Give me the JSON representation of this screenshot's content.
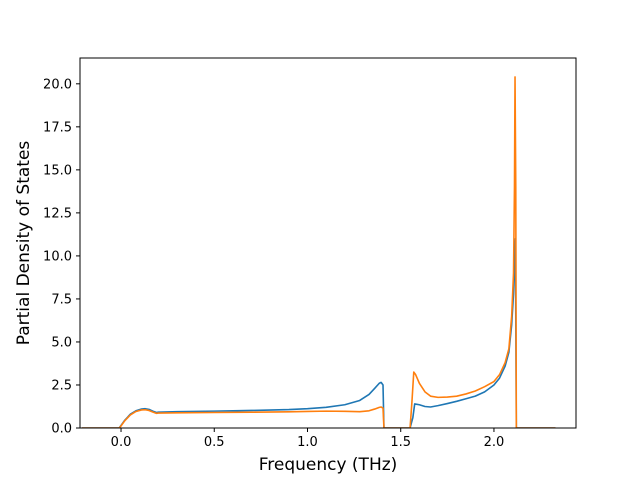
{
  "chart_data": {
    "type": "line",
    "title": "",
    "xlabel": "Frequency (THz)",
    "ylabel": "Partial Density of States",
    "xlim": [
      -0.22,
      2.44
    ],
    "ylim": [
      0.0,
      21.5
    ],
    "xticks": [
      {
        "value": 0.0,
        "label": "0.0"
      },
      {
        "value": 0.5,
        "label": "0.5"
      },
      {
        "value": 1.0,
        "label": "1.0"
      },
      {
        "value": 1.5,
        "label": "1.5"
      },
      {
        "value": 2.0,
        "label": "2.0"
      }
    ],
    "yticks": [
      {
        "value": 0.0,
        "label": "0.0"
      },
      {
        "value": 2.5,
        "label": "2.5"
      },
      {
        "value": 5.0,
        "label": "5.0"
      },
      {
        "value": 7.5,
        "label": "7.5"
      },
      {
        "value": 10.0,
        "label": "10.0"
      },
      {
        "value": 12.5,
        "label": "12.5"
      },
      {
        "value": 15.0,
        "label": "15.0"
      },
      {
        "value": 17.5,
        "label": "17.5"
      },
      {
        "value": 20.0,
        "label": "20.0"
      }
    ],
    "grid": false,
    "legend": "none",
    "series": [
      {
        "color": "#1f77b4",
        "points": [
          [
            -0.21,
            0.0
          ],
          [
            -0.01,
            0.0
          ],
          [
            0.0,
            0.15
          ],
          [
            0.02,
            0.45
          ],
          [
            0.05,
            0.8
          ],
          [
            0.08,
            1.0
          ],
          [
            0.11,
            1.1
          ],
          [
            0.13,
            1.12
          ],
          [
            0.15,
            1.08
          ],
          [
            0.17,
            0.98
          ],
          [
            0.19,
            0.9
          ],
          [
            0.2,
            0.92
          ],
          [
            0.3,
            0.95
          ],
          [
            0.5,
            0.98
          ],
          [
            0.7,
            1.02
          ],
          [
            0.9,
            1.07
          ],
          [
            1.0,
            1.12
          ],
          [
            1.1,
            1.2
          ],
          [
            1.2,
            1.35
          ],
          [
            1.28,
            1.6
          ],
          [
            1.33,
            1.95
          ],
          [
            1.36,
            2.3
          ],
          [
            1.385,
            2.6
          ],
          [
            1.395,
            2.65
          ],
          [
            1.405,
            2.5
          ],
          [
            1.41,
            0.0
          ],
          [
            1.55,
            0.0
          ],
          [
            1.565,
            0.6
          ],
          [
            1.575,
            1.4
          ],
          [
            1.6,
            1.35
          ],
          [
            1.63,
            1.25
          ],
          [
            1.66,
            1.22
          ],
          [
            1.7,
            1.3
          ],
          [
            1.75,
            1.42
          ],
          [
            1.8,
            1.55
          ],
          [
            1.85,
            1.7
          ],
          [
            1.9,
            1.85
          ],
          [
            1.95,
            2.1
          ],
          [
            2.0,
            2.5
          ],
          [
            2.03,
            2.9
          ],
          [
            2.06,
            3.6
          ],
          [
            2.08,
            4.4
          ],
          [
            2.095,
            6.0
          ],
          [
            2.105,
            7.8
          ],
          [
            2.115,
            11.0
          ],
          [
            2.12,
            0.0
          ],
          [
            2.33,
            0.0
          ]
        ]
      },
      {
        "color": "#ff7f0e",
        "points": [
          [
            -0.21,
            0.0
          ],
          [
            -0.01,
            0.0
          ],
          [
            0.0,
            0.12
          ],
          [
            0.02,
            0.42
          ],
          [
            0.05,
            0.76
          ],
          [
            0.08,
            0.96
          ],
          [
            0.11,
            1.05
          ],
          [
            0.13,
            1.06
          ],
          [
            0.15,
            1.02
          ],
          [
            0.17,
            0.93
          ],
          [
            0.19,
            0.85
          ],
          [
            0.2,
            0.87
          ],
          [
            0.3,
            0.88
          ],
          [
            0.5,
            0.9
          ],
          [
            0.7,
            0.92
          ],
          [
            0.9,
            0.94
          ],
          [
            1.0,
            0.96
          ],
          [
            1.1,
            0.98
          ],
          [
            1.2,
            0.97
          ],
          [
            1.28,
            0.95
          ],
          [
            1.33,
            1.0
          ],
          [
            1.36,
            1.1
          ],
          [
            1.385,
            1.2
          ],
          [
            1.395,
            1.22
          ],
          [
            1.405,
            1.15
          ],
          [
            1.41,
            0.0
          ],
          [
            1.55,
            0.0
          ],
          [
            1.56,
            1.5
          ],
          [
            1.57,
            3.25
          ],
          [
            1.58,
            3.1
          ],
          [
            1.6,
            2.6
          ],
          [
            1.63,
            2.1
          ],
          [
            1.66,
            1.85
          ],
          [
            1.7,
            1.78
          ],
          [
            1.75,
            1.8
          ],
          [
            1.8,
            1.85
          ],
          [
            1.85,
            1.98
          ],
          [
            1.9,
            2.15
          ],
          [
            1.95,
            2.4
          ],
          [
            2.0,
            2.7
          ],
          [
            2.03,
            3.1
          ],
          [
            2.06,
            3.8
          ],
          [
            2.08,
            4.6
          ],
          [
            2.095,
            6.5
          ],
          [
            2.105,
            9.0
          ],
          [
            2.11,
            14.0
          ],
          [
            2.113,
            20.4
          ],
          [
            2.117,
            14.0
          ],
          [
            2.12,
            0.0
          ],
          [
            2.33,
            0.0
          ]
        ]
      }
    ]
  }
}
